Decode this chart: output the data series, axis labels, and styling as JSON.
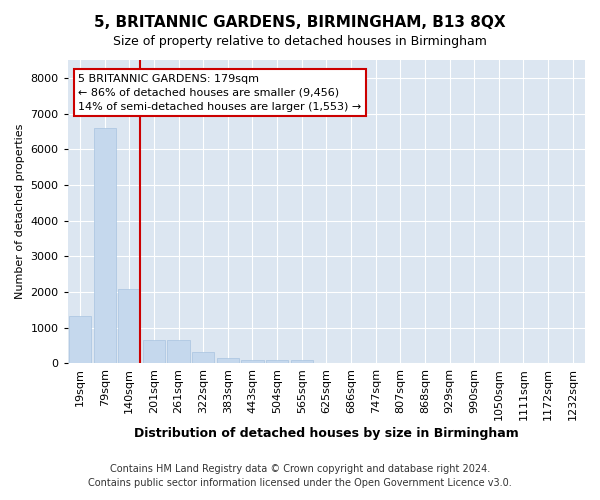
{
  "title": "5, BRITANNIC GARDENS, BIRMINGHAM, B13 8QX",
  "subtitle": "Size of property relative to detached houses in Birmingham",
  "xlabel": "Distribution of detached houses by size in Birmingham",
  "ylabel": "Number of detached properties",
  "footnote1": "Contains HM Land Registry data © Crown copyright and database right 2024.",
  "footnote2": "Contains public sector information licensed under the Open Government Licence v3.0.",
  "annotation_line1": "5 BRITANNIC GARDENS: 179sqm",
  "annotation_line2": "← 86% of detached houses are smaller (9,456)",
  "annotation_line3": "14% of semi-detached houses are larger (1,553) →",
  "bar_color": "#c5d8ed",
  "bar_edge_color": "#a8c4e0",
  "marker_color": "#cc0000",
  "bg_color": "#dce6f1",
  "fig_bg_color": "#ffffff",
  "categories": [
    "19sqm",
    "79sqm",
    "140sqm",
    "201sqm",
    "261sqm",
    "322sqm",
    "383sqm",
    "443sqm",
    "504sqm",
    "565sqm",
    "625sqm",
    "686sqm",
    "747sqm",
    "807sqm",
    "868sqm",
    "929sqm",
    "990sqm",
    "1050sqm",
    "1111sqm",
    "1172sqm",
    "1232sqm"
  ],
  "values": [
    1310,
    6600,
    2090,
    650,
    650,
    300,
    155,
    100,
    85,
    85,
    0,
    0,
    0,
    0,
    0,
    0,
    0,
    0,
    0,
    0,
    0
  ],
  "ylim": [
    0,
    8500
  ],
  "yticks": [
    0,
    1000,
    2000,
    3000,
    4000,
    5000,
    6000,
    7000,
    8000
  ],
  "marker_bin": 2,
  "title_fontsize": 11,
  "subtitle_fontsize": 9,
  "xlabel_fontsize": 9,
  "ylabel_fontsize": 8,
  "tick_fontsize": 8,
  "annotation_fontsize": 8,
  "footnote_fontsize": 7
}
